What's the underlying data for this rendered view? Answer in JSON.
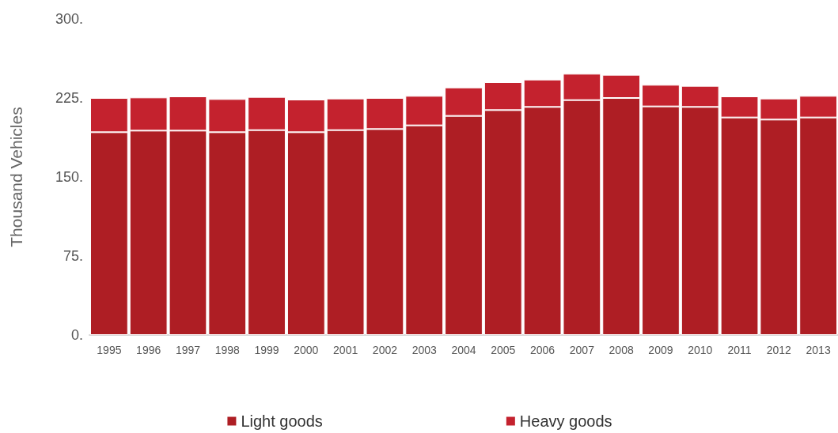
{
  "chart_data": {
    "type": "bar",
    "stacked": true,
    "ylabel": "Thousand Vehicles",
    "categories": [
      "1995",
      "1996",
      "1997",
      "1998",
      "1999",
      "2000",
      "2001",
      "2002",
      "2003",
      "2004",
      "2005",
      "2006",
      "2007",
      "2008",
      "2009",
      "2010",
      "2011",
      "2012",
      "2013"
    ],
    "series": [
      {
        "name": "Light goods",
        "color": "#ae1e24",
        "values": [
          192.5,
          194,
          194,
          192.5,
          194.5,
          192.5,
          194.5,
          195.5,
          199,
          208,
          213.5,
          216.5,
          223,
          225,
          217,
          216.5,
          206.5,
          204.5,
          206.5
        ]
      },
      {
        "name": "Heavy goods",
        "color": "#c4222e",
        "values": [
          32.5,
          31.5,
          32.5,
          31.5,
          31.5,
          31,
          30,
          29.5,
          28,
          27,
          26.5,
          26,
          25,
          22,
          20.5,
          20,
          20,
          20,
          20.5
        ]
      }
    ],
    "ylim": [
      0,
      300
    ],
    "yticks": [
      {
        "value": 0,
        "label": "0."
      },
      {
        "value": 75,
        "label": "75."
      },
      {
        "value": 150,
        "label": "150."
      },
      {
        "value": 225,
        "label": "225."
      },
      {
        "value": 300,
        "label": "300."
      }
    ],
    "grid": false,
    "legend": "bottom"
  }
}
